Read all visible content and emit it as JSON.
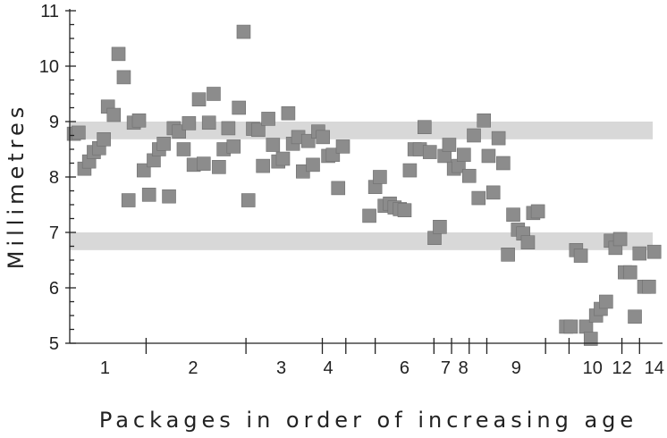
{
  "chart_data": {
    "type": "scatter",
    "title": "",
    "xlabel": "Packages in order of  increasing age",
    "ylabel": "Millimetres",
    "ylim": [
      5,
      11
    ],
    "yticks": [
      5,
      6,
      7,
      8,
      9,
      10,
      11
    ],
    "grid": false,
    "legend": "none",
    "colors": {
      "points": "#8c8c8c",
      "bands": "#d8d8d8",
      "axis": "#222222"
    },
    "x_range": [
      0,
      100
    ],
    "package_labels": [
      {
        "label": "1",
        "x": 6.0
      },
      {
        "label": "2",
        "x": 21.0
      },
      {
        "label": "3",
        "x": 36.0
      },
      {
        "label": "4",
        "x": 44.0
      },
      {
        "label": "6",
        "x": 57.0
      },
      {
        "label": "7",
        "x": 64.0
      },
      {
        "label": "8",
        "x": 67.0
      },
      {
        "label": "9",
        "x": 76.0
      },
      {
        "label": "10",
        "x": 89.0
      },
      {
        "label": "12",
        "x": 94.0
      },
      {
        "label": "14",
        "x": 99.5
      }
    ],
    "package_boundaries": [
      13,
      30,
      43,
      47,
      52,
      62,
      65,
      68,
      71,
      81,
      85,
      94,
      97
    ],
    "reference_bands": [
      {
        "from": 8.68,
        "to": 9.0
      },
      {
        "from": 6.68,
        "to": 7.0
      }
    ],
    "series": [
      {
        "points": [
          {
            "x": 0.7,
            "y": 8.78
          },
          {
            "x": 1.5,
            "y": 8.8
          },
          {
            "x": 2.5,
            "y": 8.15
          },
          {
            "x": 3.3,
            "y": 8.28
          },
          {
            "x": 4.1,
            "y": 8.45
          },
          {
            "x": 5.0,
            "y": 8.52
          },
          {
            "x": 5.8,
            "y": 8.68
          },
          {
            "x": 6.5,
            "y": 9.27
          },
          {
            "x": 7.5,
            "y": 9.12
          },
          {
            "x": 8.3,
            "y": 10.22
          },
          {
            "x": 9.2,
            "y": 9.8
          },
          {
            "x": 10.0,
            "y": 7.58
          },
          {
            "x": 10.9,
            "y": 8.98
          },
          {
            "x": 11.8,
            "y": 9.02
          },
          {
            "x": 12.6,
            "y": 8.12
          },
          {
            "x": 13.5,
            "y": 7.68
          },
          {
            "x": 14.3,
            "y": 8.3
          },
          {
            "x": 15.2,
            "y": 8.5
          },
          {
            "x": 16.0,
            "y": 8.6
          },
          {
            "x": 16.9,
            "y": 7.65
          },
          {
            "x": 17.7,
            "y": 8.88
          },
          {
            "x": 18.6,
            "y": 8.82
          },
          {
            "x": 19.4,
            "y": 8.5
          },
          {
            "x": 20.3,
            "y": 8.97
          },
          {
            "x": 21.1,
            "y": 8.22
          },
          {
            "x": 22.0,
            "y": 9.4
          },
          {
            "x": 22.8,
            "y": 8.24
          },
          {
            "x": 23.7,
            "y": 8.98
          },
          {
            "x": 24.5,
            "y": 9.5
          },
          {
            "x": 25.4,
            "y": 8.18
          },
          {
            "x": 26.2,
            "y": 8.5
          },
          {
            "x": 27.0,
            "y": 8.88
          },
          {
            "x": 27.9,
            "y": 8.55
          },
          {
            "x": 28.8,
            "y": 9.25
          },
          {
            "x": 29.6,
            "y": 10.62
          },
          {
            "x": 30.4,
            "y": 7.58
          },
          {
            "x": 31.2,
            "y": 8.87
          },
          {
            "x": 32.1,
            "y": 8.85
          },
          {
            "x": 32.9,
            "y": 8.2
          },
          {
            "x": 33.8,
            "y": 9.05
          },
          {
            "x": 34.6,
            "y": 8.58
          },
          {
            "x": 35.5,
            "y": 8.28
          },
          {
            "x": 36.3,
            "y": 8.33
          },
          {
            "x": 37.2,
            "y": 9.15
          },
          {
            "x": 38.0,
            "y": 8.6
          },
          {
            "x": 38.9,
            "y": 8.72
          },
          {
            "x": 39.7,
            "y": 8.1
          },
          {
            "x": 40.6,
            "y": 8.65
          },
          {
            "x": 41.4,
            "y": 8.22
          },
          {
            "x": 42.3,
            "y": 8.82
          },
          {
            "x": 43.1,
            "y": 8.72
          },
          {
            "x": 44.0,
            "y": 8.38
          },
          {
            "x": 44.8,
            "y": 8.4
          },
          {
            "x": 45.7,
            "y": 7.8
          },
          {
            "x": 46.5,
            "y": 8.55
          },
          {
            "x": 51.0,
            "y": 7.3
          },
          {
            "x": 52.0,
            "y": 7.82
          },
          {
            "x": 52.8,
            "y": 8.0
          },
          {
            "x": 53.6,
            "y": 7.48
          },
          {
            "x": 54.5,
            "y": 7.52
          },
          {
            "x": 55.3,
            "y": 7.45
          },
          {
            "x": 56.2,
            "y": 7.42
          },
          {
            "x": 57.0,
            "y": 7.4
          },
          {
            "x": 57.9,
            "y": 8.12
          },
          {
            "x": 58.7,
            "y": 8.5
          },
          {
            "x": 59.6,
            "y": 8.5
          },
          {
            "x": 60.4,
            "y": 8.9
          },
          {
            "x": 61.3,
            "y": 8.45
          },
          {
            "x": 62.1,
            "y": 6.9
          },
          {
            "x": 63.0,
            "y": 7.1
          },
          {
            "x": 63.8,
            "y": 8.38
          },
          {
            "x": 64.6,
            "y": 8.58
          },
          {
            "x": 65.4,
            "y": 8.15
          },
          {
            "x": 66.2,
            "y": 8.2
          },
          {
            "x": 67.1,
            "y": 8.4
          },
          {
            "x": 68.0,
            "y": 8.02
          },
          {
            "x": 68.8,
            "y": 8.75
          },
          {
            "x": 69.6,
            "y": 7.62
          },
          {
            "x": 70.5,
            "y": 9.02
          },
          {
            "x": 71.3,
            "y": 8.38
          },
          {
            "x": 72.1,
            "y": 7.72
          },
          {
            "x": 73.0,
            "y": 8.7
          },
          {
            "x": 73.8,
            "y": 8.25
          },
          {
            "x": 74.6,
            "y": 6.6
          },
          {
            "x": 75.5,
            "y": 7.32
          },
          {
            "x": 76.3,
            "y": 7.05
          },
          {
            "x": 77.2,
            "y": 6.98
          },
          {
            "x": 78.0,
            "y": 6.82
          },
          {
            "x": 78.9,
            "y": 7.35
          },
          {
            "x": 79.7,
            "y": 7.38
          },
          {
            "x": 84.5,
            "y": 5.3
          },
          {
            "x": 85.3,
            "y": 5.3
          },
          {
            "x": 86.2,
            "y": 6.68
          },
          {
            "x": 87.0,
            "y": 6.58
          },
          {
            "x": 87.9,
            "y": 5.3
          },
          {
            "x": 88.7,
            "y": 5.08
          },
          {
            "x": 89.6,
            "y": 5.5
          },
          {
            "x": 90.4,
            "y": 5.62
          },
          {
            "x": 91.3,
            "y": 5.75
          },
          {
            "x": 92.1,
            "y": 6.85
          },
          {
            "x": 92.9,
            "y": 6.72
          },
          {
            "x": 93.7,
            "y": 6.88
          },
          {
            "x": 94.5,
            "y": 6.28
          },
          {
            "x": 95.4,
            "y": 6.28
          },
          {
            "x": 96.2,
            "y": 5.48
          },
          {
            "x": 97.0,
            "y": 6.62
          },
          {
            "x": 97.8,
            "y": 6.02
          },
          {
            "x": 98.6,
            "y": 6.02
          },
          {
            "x": 99.5,
            "y": 6.65
          }
        ]
      }
    ]
  }
}
